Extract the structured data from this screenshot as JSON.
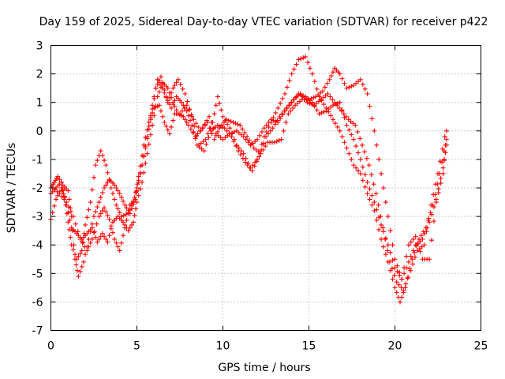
{
  "chart_data": {
    "type": "scatter",
    "title": "Day 159 of 2025, Sidereal Day-to-day VTEC variation (SDTVAR) for receiver p422",
    "xlabel": "GPS time / hours",
    "ylabel": "SDTVAR / TECUs",
    "xlim": [
      0,
      25
    ],
    "ylim": [
      -7,
      3
    ],
    "xticks": [
      "0",
      "5",
      "10",
      "15",
      "20",
      "25"
    ],
    "yticks": [
      "-7",
      "-6",
      "-5",
      "-4",
      "-3",
      "-2",
      "-1",
      "0",
      "1",
      "2",
      "3"
    ],
    "grid": true,
    "marker": "+",
    "color": "#ff0000",
    "series": [
      {
        "name": "track-1",
        "points": [
          [
            0.0,
            -3.1
          ],
          [
            0.3,
            -2.4
          ],
          [
            0.6,
            -2.0
          ],
          [
            0.8,
            -2.3
          ],
          [
            1.0,
            -3.2
          ],
          [
            1.2,
            -4.0
          ],
          [
            1.5,
            -4.5
          ],
          [
            1.8,
            -4.2
          ],
          [
            2.0,
            -3.3
          ],
          [
            2.3,
            -2.5
          ],
          [
            2.6,
            -1.2
          ],
          [
            2.9,
            -0.7
          ],
          [
            3.2,
            -1.2
          ],
          [
            3.5,
            -2.0
          ],
          [
            3.8,
            -2.6
          ],
          [
            4.1,
            -3.0
          ],
          [
            4.5,
            -2.9
          ],
          [
            4.8,
            -2.5
          ],
          [
            5.0,
            -2.0
          ],
          [
            5.3,
            -1.2
          ],
          [
            5.6,
            -0.2
          ],
          [
            5.9,
            0.9
          ],
          [
            6.2,
            1.8
          ],
          [
            6.5,
            1.5
          ],
          [
            6.8,
            1.0
          ],
          [
            7.1,
            1.5
          ],
          [
            7.4,
            1.8
          ],
          [
            7.8,
            1.3
          ],
          [
            8.2,
            0.5
          ],
          [
            8.6,
            -0.5
          ],
          [
            9.0,
            -0.3
          ],
          [
            9.4,
            0.3
          ],
          [
            9.7,
            1.2
          ],
          [
            10.0,
            0.5
          ],
          [
            10.4,
            0.1
          ],
          [
            10.8,
            -0.5
          ],
          [
            11.2,
            -0.8
          ],
          [
            11.6,
            -1.3
          ],
          [
            12.0,
            -1.0
          ],
          [
            12.4,
            -0.2
          ],
          [
            12.8,
            0.3
          ],
          [
            13.2,
            0.8
          ],
          [
            13.6,
            1.3
          ],
          [
            14.0,
            2.0
          ],
          [
            14.4,
            2.5
          ],
          [
            14.8,
            2.6
          ],
          [
            15.2,
            2.0
          ],
          [
            15.6,
            1.2
          ],
          [
            16.0,
            0.8
          ],
          [
            16.4,
            0.4
          ],
          [
            16.8,
            0.0
          ],
          [
            17.2,
            -0.6
          ],
          [
            17.6,
            -1.2
          ],
          [
            18.0,
            -1.5
          ],
          [
            18.4,
            -2.2
          ],
          [
            18.8,
            -2.8
          ],
          [
            19.2,
            -3.8
          ],
          [
            19.6,
            -4.6
          ],
          [
            20.0,
            -5.5
          ],
          [
            20.3,
            -6.0
          ],
          [
            20.6,
            -5.5
          ],
          [
            21.0,
            -4.5
          ],
          [
            21.4,
            -3.8
          ],
          [
            21.8,
            -3.4
          ],
          [
            22.2,
            -2.6
          ],
          [
            22.6,
            -1.5
          ],
          [
            23.0,
            -0.3
          ]
        ]
      },
      {
        "name": "track-2",
        "points": [
          [
            0.0,
            -2.0
          ],
          [
            0.2,
            -1.8
          ],
          [
            0.4,
            -1.6
          ],
          [
            0.7,
            -1.9
          ],
          [
            1.0,
            -2.1
          ],
          [
            1.2,
            -3.0
          ],
          [
            1.4,
            -4.5
          ],
          [
            1.6,
            -5.1
          ],
          [
            1.9,
            -4.6
          ],
          [
            2.2,
            -3.8
          ],
          [
            2.5,
            -3.0
          ],
          [
            2.8,
            -2.5
          ],
          [
            3.1,
            -2.0
          ],
          [
            3.4,
            -1.7
          ],
          [
            3.7,
            -1.9
          ],
          [
            4.0,
            -2.2
          ],
          [
            4.3,
            -2.6
          ],
          [
            4.6,
            -2.9
          ],
          [
            4.9,
            -2.4
          ],
          [
            5.1,
            -1.6
          ],
          [
            5.4,
            -0.5
          ],
          [
            5.7,
            0.3
          ],
          [
            6.0,
            0.8
          ],
          [
            6.3,
            0.9
          ],
          [
            6.6,
            0.3
          ],
          [
            6.9,
            -0.1
          ],
          [
            7.2,
            0.6
          ],
          [
            7.5,
            0.6
          ],
          [
            7.9,
            0.9
          ],
          [
            8.3,
            0.4
          ],
          [
            8.7,
            0.0
          ],
          [
            9.1,
            0.3
          ],
          [
            9.5,
            -0.3
          ],
          [
            9.8,
            0.1
          ],
          [
            10.2,
            0.4
          ],
          [
            10.6,
            0.3
          ],
          [
            11.0,
            0.2
          ],
          [
            11.4,
            -0.2
          ],
          [
            11.8,
            -0.6
          ],
          [
            12.2,
            -0.8
          ],
          [
            12.6,
            -0.4
          ],
          [
            13.0,
            -0.4
          ],
          [
            13.4,
            -0.3
          ],
          [
            13.8,
            0.6
          ],
          [
            14.2,
            0.9
          ],
          [
            14.6,
            1.1
          ],
          [
            15.0,
            1.1
          ],
          [
            15.4,
            1.2
          ],
          [
            15.8,
            1.4
          ],
          [
            16.2,
            1.8
          ],
          [
            16.5,
            2.2
          ],
          [
            16.8,
            2.0
          ],
          [
            17.2,
            1.5
          ],
          [
            17.6,
            1.6
          ],
          [
            18.0,
            1.8
          ],
          [
            18.4,
            1.3
          ],
          [
            18.8,
            0.0
          ],
          [
            19.2,
            -1.5
          ],
          [
            19.6,
            -3.0
          ],
          [
            20.0,
            -4.5
          ],
          [
            20.4,
            -5.2
          ],
          [
            20.8,
            -4.0
          ],
          [
            21.2,
            -3.7
          ],
          [
            21.6,
            -4.5
          ],
          [
            22.0,
            -4.5
          ],
          [
            22.4,
            -2.5
          ],
          [
            22.8,
            -1.5
          ],
          [
            23.0,
            0.0
          ]
        ]
      },
      {
        "name": "track-3",
        "points": [
          [
            0.0,
            -2.2
          ],
          [
            0.3,
            -2.0
          ],
          [
            0.6,
            -1.8
          ],
          [
            0.9,
            -2.6
          ],
          [
            1.2,
            -3.4
          ],
          [
            1.5,
            -3.6
          ],
          [
            1.8,
            -3.8
          ],
          [
            2.1,
            -3.6
          ],
          [
            2.4,
            -3.4
          ],
          [
            2.7,
            -3.9
          ],
          [
            3.0,
            -3.6
          ],
          [
            3.3,
            -3.9
          ],
          [
            3.6,
            -3.2
          ],
          [
            3.9,
            -3.0
          ],
          [
            4.2,
            -3.2
          ],
          [
            4.5,
            -3.5
          ],
          [
            4.8,
            -3.2
          ],
          [
            5.0,
            -2.5
          ],
          [
            5.3,
            -1.8
          ],
          [
            5.6,
            -0.8
          ],
          [
            5.9,
            0.2
          ],
          [
            6.2,
            1.2
          ],
          [
            6.5,
            1.7
          ],
          [
            6.8,
            1.5
          ],
          [
            7.1,
            1.0
          ],
          [
            7.4,
            0.6
          ],
          [
            7.7,
            0.5
          ],
          [
            8.0,
            0.2
          ],
          [
            8.4,
            -0.2
          ],
          [
            8.8,
            0.1
          ],
          [
            9.2,
            0.5
          ],
          [
            9.6,
            -0.1
          ],
          [
            10.0,
            -0.3
          ],
          [
            10.4,
            -0.1
          ],
          [
            10.8,
            0.0
          ],
          [
            11.2,
            -0.2
          ],
          [
            11.6,
            -0.5
          ],
          [
            12.0,
            -0.3
          ],
          [
            12.4,
            0.1
          ],
          [
            12.8,
            0.4
          ],
          [
            13.2,
            0.3
          ],
          [
            13.6,
            0.7
          ],
          [
            14.0,
            1.0
          ],
          [
            14.4,
            1.3
          ],
          [
            14.8,
            1.2
          ],
          [
            15.2,
            1.0
          ],
          [
            15.6,
            0.6
          ],
          [
            16.0,
            0.7
          ],
          [
            16.4,
            0.9
          ],
          [
            16.8,
            1.0
          ],
          [
            17.2,
            0.2
          ],
          [
            17.6,
            -0.3
          ],
          [
            18.0,
            -1.0
          ],
          [
            18.4,
            -1.8
          ],
          [
            18.8,
            -2.5
          ],
          [
            19.2,
            -3.3
          ],
          [
            19.6,
            -4.0
          ],
          [
            20.0,
            -4.8
          ],
          [
            20.4,
            -5.2
          ],
          [
            20.8,
            -4.6
          ],
          [
            21.2,
            -4.0
          ],
          [
            21.6,
            -3.8
          ],
          [
            22.0,
            -3.2
          ],
          [
            22.4,
            -2.4
          ],
          [
            22.8,
            -1.3
          ],
          [
            23.0,
            -0.5
          ]
        ]
      },
      {
        "name": "track-4",
        "points": [
          [
            0.1,
            -2.0
          ],
          [
            0.5,
            -2.2
          ],
          [
            0.9,
            -2.5
          ],
          [
            1.3,
            -3.0
          ],
          [
            1.7,
            -3.8
          ],
          [
            2.1,
            -4.2
          ],
          [
            2.4,
            -3.8
          ],
          [
            2.8,
            -3.0
          ],
          [
            3.1,
            -2.7
          ],
          [
            3.4,
            -3.1
          ],
          [
            3.7,
            -3.8
          ],
          [
            4.0,
            -4.2
          ],
          [
            4.3,
            -3.4
          ],
          [
            4.6,
            -2.6
          ],
          [
            4.9,
            -2.4
          ],
          [
            5.2,
            -1.5
          ],
          [
            5.5,
            -0.6
          ],
          [
            5.8,
            0.4
          ],
          [
            6.1,
            1.5
          ],
          [
            6.4,
            1.9
          ],
          [
            6.7,
            1.2
          ],
          [
            7.0,
            0.8
          ],
          [
            7.3,
            1.2
          ],
          [
            7.6,
            1.0
          ],
          [
            7.9,
            0.7
          ],
          [
            8.2,
            0.2
          ],
          [
            8.5,
            -0.5
          ],
          [
            8.9,
            -0.7
          ],
          [
            9.3,
            0.0
          ],
          [
            9.7,
            0.2
          ],
          [
            10.1,
            0.1
          ],
          [
            10.5,
            -0.2
          ],
          [
            10.9,
            -0.7
          ],
          [
            11.3,
            -1.1
          ],
          [
            11.7,
            -1.4
          ],
          [
            12.1,
            -0.9
          ],
          [
            12.5,
            -0.2
          ],
          [
            12.9,
            0.1
          ],
          [
            13.3,
            0.5
          ],
          [
            13.7,
            0.8
          ],
          [
            14.1,
            1.1
          ],
          [
            14.5,
            1.3
          ],
          [
            14.9,
            1.0
          ],
          [
            15.3,
            0.9
          ],
          [
            15.7,
            1.1
          ],
          [
            16.1,
            1.3
          ],
          [
            16.5,
            1.0
          ],
          [
            16.9,
            0.7
          ],
          [
            17.3,
            0.4
          ],
          [
            17.7,
            0.2
          ],
          [
            18.1,
            -0.5
          ],
          [
            18.5,
            -1.2
          ],
          [
            18.9,
            -2.2
          ],
          [
            19.3,
            -3.4
          ],
          [
            19.7,
            -4.6
          ],
          [
            20.1,
            -5.3
          ],
          [
            20.5,
            -5.6
          ],
          [
            20.9,
            -4.9
          ],
          [
            21.3,
            -4.2
          ],
          [
            21.7,
            -4.0
          ],
          [
            22.1,
            -2.6
          ],
          [
            22.5,
            -1.5
          ],
          [
            22.9,
            -0.2
          ]
        ]
      }
    ]
  }
}
